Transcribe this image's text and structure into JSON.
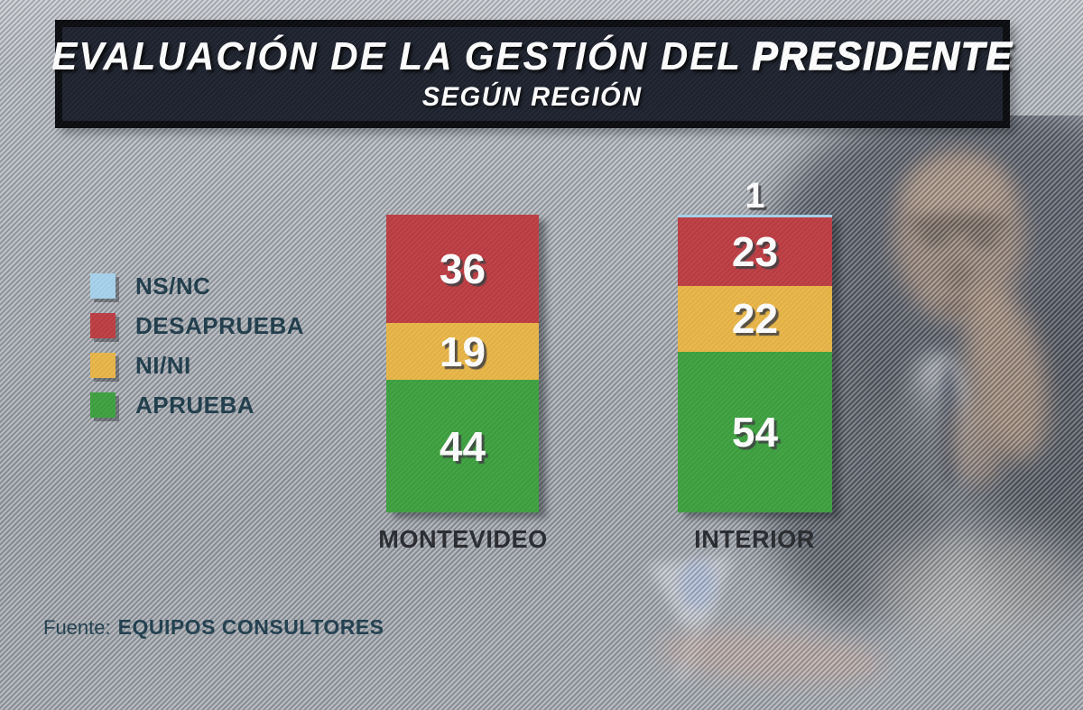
{
  "title": {
    "line1_prefix": "EVALUACIÓN DE LA GESTIÓN DEL",
    "line1_emphasis": "PRESIDENTE",
    "line2": "SEGÚN REGIÓN"
  },
  "legend": {
    "items": [
      {
        "label": "NS/NC",
        "color": "#a6d2ec"
      },
      {
        "label": "DESAPRUEBA",
        "color": "#bd3b40"
      },
      {
        "label": "NI/NI",
        "color": "#e9b545"
      },
      {
        "label": "APRUEBA",
        "color": "#3ba03d"
      }
    ]
  },
  "chart_data": {
    "type": "bar",
    "variant": "stacked-column",
    "title": "EVALUACIÓN DE LA GESTIÓN DEL PRESIDENTE SEGÚN REGIÓN",
    "unit": "percent",
    "categories": [
      "MONTEVIDEO",
      "INTERIOR"
    ],
    "series": [
      {
        "name": "NS/NC",
        "color": "#a6d2ec",
        "values": [
          null,
          1
        ]
      },
      {
        "name": "DESAPRUEBA",
        "color": "#bd3b40",
        "values": [
          36,
          23
        ]
      },
      {
        "name": "NI/NI",
        "color": "#e9b545",
        "values": [
          19,
          22
        ]
      },
      {
        "name": "APRUEBA",
        "color": "#3ba03d",
        "values": [
          44,
          54
        ]
      }
    ],
    "legend_position": "left",
    "value_labels": "inside",
    "notes": "Interior NS/NC value (1) is labeled above the bar; segments stacked top-to-bottom: NS/NC, DESAPRUEBA, NI/NI, APRUEBA"
  },
  "source": {
    "prefix": "Fuente:",
    "name": "EQUIPOS CONSULTORES"
  }
}
